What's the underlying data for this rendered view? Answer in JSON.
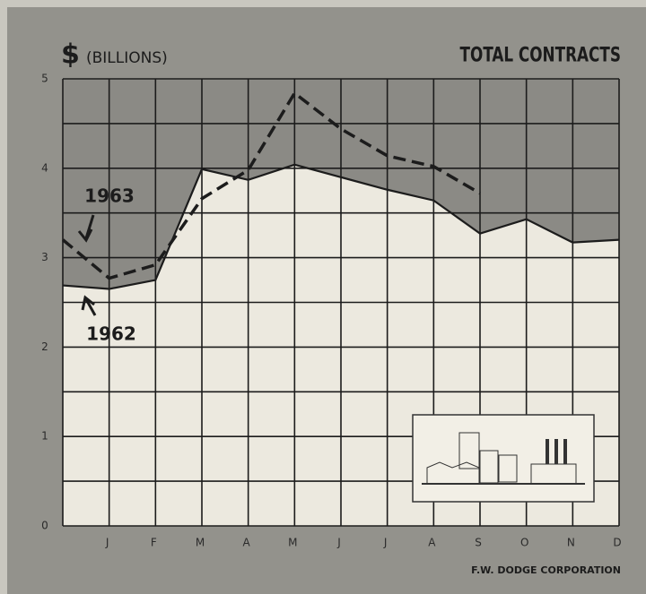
{
  "chart_data": {
    "type": "line",
    "title": "TOTAL CONTRACTS",
    "y_axis_symbol": "$",
    "y_axis_unit": "(BILLIONS)",
    "source": "F.W. DODGE CORPORATION",
    "categories": [
      null,
      "J",
      "F",
      "M",
      "A",
      "M",
      "J",
      "J",
      "A",
      "S",
      "O",
      "N",
      "D"
    ],
    "series": [
      {
        "name": "1963",
        "color": "#1c1c1c",
        "style": "dashed",
        "values": [
          3.2,
          2.77,
          2.92,
          3.66,
          3.98,
          4.84,
          4.44,
          4.14,
          4.02,
          3.72,
          null,
          null,
          null
        ]
      },
      {
        "name": "1962",
        "color": "#1c1c1c",
        "style": "solid",
        "fill": "#ece9df",
        "values": [
          2.69,
          2.65,
          2.75,
          3.99,
          3.87,
          4.04,
          3.9,
          3.76,
          3.64,
          3.27,
          3.43,
          3.17,
          3.2
        ]
      }
    ],
    "ylim": [
      0,
      5
    ],
    "yticks": [
      0,
      1,
      2,
      3,
      4,
      5
    ],
    "yminorticks": [
      0.5,
      1.5,
      2.5,
      3.5,
      4.5
    ],
    "grid": true
  }
}
